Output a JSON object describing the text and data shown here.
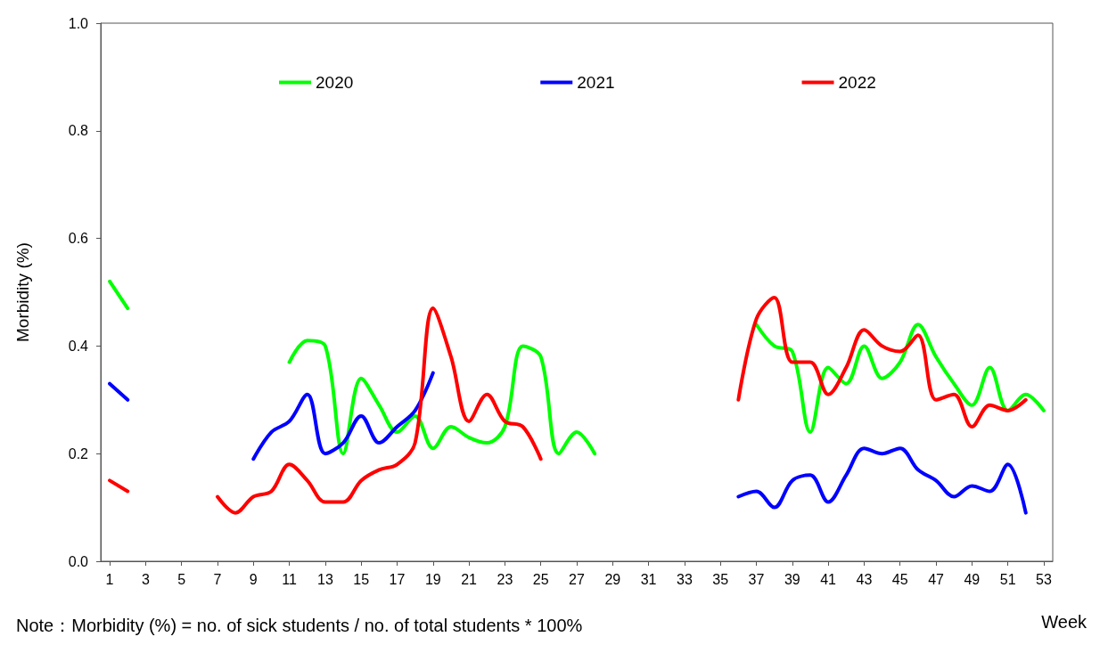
{
  "chart_data": {
    "type": "line",
    "xlabel": "Week",
    "ylabel": "Morbidity (%)",
    "annotations": [
      "Note：Morbidity (%) = no. of sick students / no. of total students * 100%"
    ],
    "x": [
      1,
      2,
      3,
      4,
      5,
      6,
      7,
      8,
      9,
      10,
      11,
      12,
      13,
      14,
      15,
      16,
      17,
      18,
      19,
      20,
      21,
      22,
      23,
      24,
      25,
      26,
      27,
      28,
      29,
      30,
      31,
      32,
      33,
      34,
      35,
      36,
      37,
      38,
      39,
      40,
      41,
      42,
      43,
      44,
      45,
      46,
      47,
      48,
      49,
      50,
      51,
      52,
      53
    ],
    "xlim": [
      0.5,
      53.5
    ],
    "xticks": [
      1,
      3,
      5,
      7,
      9,
      11,
      13,
      15,
      17,
      19,
      21,
      23,
      25,
      27,
      29,
      31,
      33,
      35,
      37,
      39,
      41,
      43,
      45,
      47,
      49,
      51,
      53
    ],
    "series": [
      {
        "name": "2020",
        "color": "#00ff00",
        "values": [
          0.52,
          0.47,
          null,
          null,
          null,
          null,
          null,
          null,
          null,
          null,
          0.37,
          0.41,
          0.4,
          0.2,
          0.34,
          0.29,
          0.24,
          0.27,
          0.21,
          0.25,
          0.23,
          0.22,
          0.25,
          0.4,
          0.38,
          0.2,
          0.24,
          0.2,
          null,
          null,
          null,
          null,
          null,
          null,
          null,
          null,
          0.44,
          0.4,
          0.39,
          0.24,
          0.36,
          0.33,
          0.4,
          0.34,
          0.37,
          0.44,
          0.38,
          0.33,
          0.29,
          0.36,
          0.28,
          0.31,
          0.28
        ]
      },
      {
        "name": "2021",
        "color": "#0000ff",
        "values": [
          0.33,
          0.3,
          null,
          null,
          null,
          null,
          null,
          null,
          0.19,
          0.24,
          0.26,
          0.31,
          0.2,
          0.22,
          0.27,
          0.22,
          0.25,
          0.28,
          0.35,
          null,
          null,
          null,
          null,
          null,
          null,
          null,
          null,
          null,
          null,
          null,
          null,
          null,
          null,
          null,
          null,
          0.12,
          0.13,
          0.1,
          0.15,
          0.16,
          0.11,
          0.16,
          0.21,
          0.2,
          0.21,
          0.17,
          0.15,
          0.12,
          0.14,
          0.13,
          0.18,
          0.09,
          null
        ]
      },
      {
        "name": "2022",
        "color": "#ff0000",
        "values": [
          0.15,
          0.13,
          null,
          null,
          null,
          null,
          0.12,
          0.09,
          0.12,
          0.13,
          0.18,
          0.15,
          0.11,
          0.11,
          0.15,
          0.17,
          0.18,
          0.22,
          0.47,
          0.38,
          0.26,
          0.31,
          0.26,
          0.25,
          0.19,
          null,
          null,
          null,
          null,
          null,
          null,
          null,
          null,
          null,
          null,
          0.3,
          0.45,
          0.49,
          0.37,
          0.37,
          0.31,
          0.36,
          0.43,
          0.4,
          0.39,
          0.42,
          0.3,
          0.31,
          0.25,
          0.29,
          0.28,
          0.3,
          null
        ]
      }
    ],
    "ylim": [
      0,
      1
    ],
    "yticks": [
      {
        "value": 0,
        "label": "0.0"
      },
      0.2,
      0.4,
      0.6,
      0.8,
      {
        "value": 1,
        "label": "1.0"
      }
    ],
    "grid": false,
    "legend": "top",
    "marker": "none",
    "line_style": "solid"
  }
}
